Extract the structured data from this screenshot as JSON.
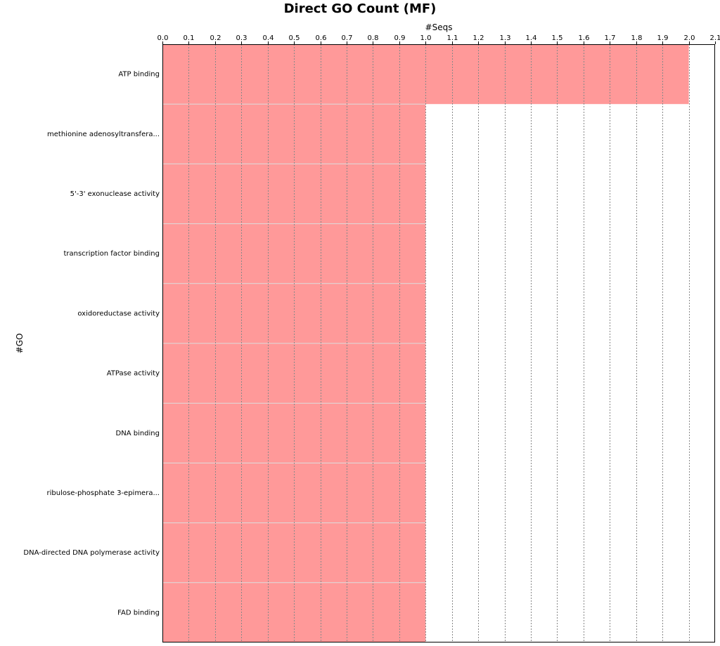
{
  "chart_data": {
    "type": "bar",
    "orientation": "horizontal",
    "title": "Direct GO Count (MF)",
    "xlabel": "#Seqs",
    "ylabel": "#GO",
    "xlim": [
      0,
      2.1
    ],
    "x_ticks": [
      "0.0",
      "0.1",
      "0.2",
      "0.3",
      "0.4",
      "0.5",
      "0.6",
      "0.7",
      "0.8",
      "0.9",
      "1.0",
      "1.1",
      "1.2",
      "1.3",
      "1.4",
      "1.5",
      "1.6",
      "1.7",
      "1.8",
      "1.9",
      "2.0",
      "2.1"
    ],
    "categories": [
      "ATP binding",
      "methionine adenosyltransfera...",
      "5'-3' exonuclease activity",
      "transcription factor binding",
      "oxidoreductase activity",
      "ATPase activity",
      "DNA binding",
      "ribulose-phosphate 3-epimera...",
      "DNA-directed DNA polymerase activity",
      "FAD binding"
    ],
    "values": [
      2,
      1,
      1,
      1,
      1,
      1,
      1,
      1,
      1,
      1
    ],
    "bar_color": "#ff9999",
    "grid": true,
    "x_axis_position": "top"
  }
}
